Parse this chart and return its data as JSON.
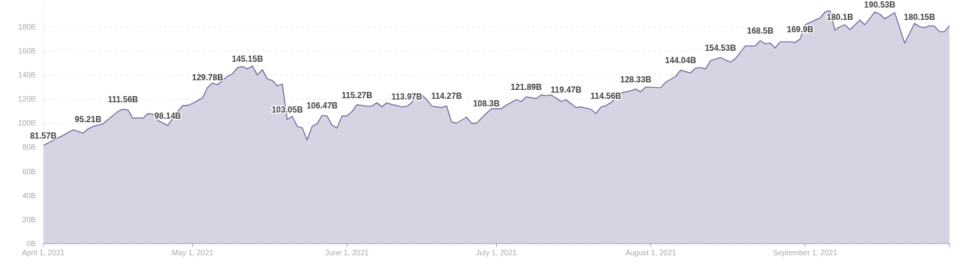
{
  "chart_data": {
    "type": "area",
    "x": [
      "2021-04-01",
      "2021-04-05",
      "2021-04-07",
      "2021-04-09",
      "2021-04-10",
      "2021-04-11",
      "2021-04-13",
      "2021-04-14",
      "2021-04-16",
      "2021-04-17",
      "2021-04-18",
      "2021-04-19",
      "2021-04-20",
      "2021-04-21",
      "2021-04-22",
      "2021-04-23",
      "2021-04-24",
      "2021-04-26",
      "2021-04-28",
      "2021-04-29",
      "2021-04-30",
      "2021-05-01",
      "2021-05-03",
      "2021-05-04",
      "2021-05-05",
      "2021-05-06",
      "2021-05-08",
      "2021-05-09",
      "2021-05-10",
      "2021-05-11",
      "2021-05-12",
      "2021-05-13",
      "2021-05-14",
      "2021-05-15",
      "2021-05-16",
      "2021-05-17",
      "2021-05-18",
      "2021-05-19",
      "2021-05-20",
      "2021-05-21",
      "2021-05-22",
      "2021-05-23",
      "2021-05-24",
      "2021-05-25",
      "2021-05-26",
      "2021-05-27",
      "2021-05-28",
      "2021-05-29",
      "2021-05-30",
      "2021-05-31",
      "2021-06-01",
      "2021-06-02",
      "2021-06-03",
      "2021-06-05",
      "2021-06-06",
      "2021-06-07",
      "2021-06-08",
      "2021-06-09",
      "2021-06-10",
      "2021-06-12",
      "2021-06-13",
      "2021-06-14",
      "2021-06-15",
      "2021-06-16",
      "2021-06-17",
      "2021-06-18",
      "2021-06-20",
      "2021-06-21",
      "2021-06-22",
      "2021-06-23",
      "2021-06-25",
      "2021-06-26",
      "2021-06-27",
      "2021-06-29",
      "2021-06-30",
      "2021-07-02",
      "2021-07-03",
      "2021-07-05",
      "2021-07-06",
      "2021-07-07",
      "2021-07-09",
      "2021-07-10",
      "2021-07-11",
      "2021-07-12",
      "2021-07-14",
      "2021-07-15",
      "2021-07-17",
      "2021-07-18",
      "2021-07-20",
      "2021-07-21",
      "2021-07-22",
      "2021-07-23",
      "2021-07-24",
      "2021-07-26",
      "2021-07-28",
      "2021-07-29",
      "2021-07-30",
      "2021-07-31",
      "2021-08-03",
      "2021-08-04",
      "2021-08-06",
      "2021-08-07",
      "2021-08-09",
      "2021-08-10",
      "2021-08-11",
      "2021-08-12",
      "2021-08-13",
      "2021-08-15",
      "2021-08-17",
      "2021-08-18",
      "2021-08-20",
      "2021-08-22",
      "2021-08-23",
      "2021-08-24",
      "2021-08-25",
      "2021-08-26",
      "2021-08-27",
      "2021-08-29",
      "2021-08-30",
      "2021-08-31",
      "2021-09-01",
      "2021-09-03",
      "2021-09-04",
      "2021-09-05",
      "2021-09-06",
      "2021-09-07",
      "2021-09-08",
      "2021-09-09",
      "2021-09-10",
      "2021-09-12",
      "2021-09-13",
      "2021-09-15",
      "2021-09-16",
      "2021-09-17",
      "2021-09-19",
      "2021-09-21",
      "2021-09-23",
      "2021-09-24",
      "2021-09-25",
      "2021-09-26",
      "2021-09-27",
      "2021-09-28",
      "2021-09-29",
      "2021-09-30"
    ],
    "series": [
      {
        "color": "#6b679c",
        "values": [
          81.57,
          90,
          94.5,
          91.7,
          95.21,
          97.3,
          99.5,
          103,
          109.7,
          111.56,
          111,
          104,
          104.5,
          104,
          108,
          107.5,
          102.4,
          98.14,
          109.7,
          114.7,
          114.7,
          116.4,
          121,
          129.78,
          133.3,
          132,
          138.9,
          141,
          146,
          147,
          145.15,
          147.5,
          140,
          144.5,
          136.7,
          135.5,
          131,
          132.5,
          103.05,
          105.7,
          97.4,
          96.2,
          86,
          97.4,
          99.5,
          106.47,
          106,
          98.4,
          96,
          106,
          106,
          109.7,
          115.27,
          114.2,
          114.2,
          117,
          113.6,
          117,
          115.5,
          113.6,
          113.97,
          117,
          125,
          123.5,
          119.6,
          114.2,
          113,
          114.27,
          101,
          100,
          105,
          100,
          100,
          108.3,
          112,
          112,
          115,
          119.4,
          118,
          121.89,
          120.4,
          123.5,
          122.7,
          123.5,
          118,
          119.47,
          113,
          113.5,
          111.5,
          108,
          113.5,
          114.56,
          117,
          124.9,
          127,
          128.33,
          126,
          130,
          129.4,
          134,
          138.9,
          144.04,
          141.7,
          145.7,
          146.2,
          145,
          151.9,
          154.53,
          150.7,
          153.5,
          164.2,
          164.2,
          168.5,
          165.9,
          166.5,
          162.5,
          167.6,
          167.6,
          167,
          169.9,
          181.7,
          185.6,
          187.3,
          192.3,
          193.5,
          177.2,
          180.1,
          181.7,
          177.7,
          185.6,
          181.7,
          192.3,
          190.53,
          186.7,
          191.8,
          166.5,
          182.8,
          180.15,
          179.4,
          181,
          180.5,
          176,
          176,
          181
        ],
        "value_labels": [
          "81.57B",
          null,
          null,
          null,
          "95.21B",
          null,
          null,
          null,
          null,
          "111.56B",
          null,
          null,
          null,
          null,
          null,
          null,
          null,
          "98.14B",
          null,
          null,
          null,
          null,
          null,
          "129.78B",
          null,
          null,
          null,
          null,
          null,
          null,
          "145.15B",
          null,
          null,
          null,
          null,
          null,
          null,
          null,
          "103.05B",
          null,
          null,
          null,
          null,
          null,
          null,
          "106.47B",
          null,
          null,
          null,
          null,
          null,
          null,
          "115.27B",
          null,
          null,
          null,
          null,
          null,
          null,
          null,
          "113.97B",
          null,
          null,
          null,
          null,
          null,
          null,
          "114.27B",
          null,
          null,
          null,
          null,
          null,
          "108.3B",
          null,
          null,
          null,
          null,
          null,
          "121.89B",
          null,
          null,
          null,
          null,
          null,
          "119.47B",
          null,
          null,
          null,
          null,
          null,
          "114.56B",
          null,
          null,
          null,
          "128.33B",
          null,
          null,
          null,
          null,
          null,
          "144.04B",
          null,
          null,
          null,
          null,
          null,
          "154.53B",
          null,
          null,
          null,
          null,
          "168.5B",
          null,
          null,
          null,
          null,
          null,
          null,
          "169.9B",
          null,
          null,
          null,
          null,
          null,
          null,
          "180.1B",
          null,
          null,
          null,
          null,
          null,
          "190.53B",
          null,
          null,
          null,
          null,
          "180.15B",
          null,
          null,
          null,
          null,
          null,
          null
        ]
      }
    ],
    "xlim": [
      "2021-04-01",
      "2021-09-30"
    ],
    "xticks": [
      {
        "value": "2021-04-01",
        "label": "April 1, 2021"
      },
      {
        "value": "2021-05-01",
        "label": "May 1, 2021"
      },
      {
        "value": "2021-06-01",
        "label": "June 1, 2021"
      },
      {
        "value": "2021-07-01",
        "label": "July 1, 2021"
      },
      {
        "value": "2021-08-01",
        "label": "August 1, 2021"
      },
      {
        "value": "2021-09-01",
        "label": "September 1, 2021"
      },
      {
        "value": "2021-09-30",
        "label": null
      }
    ],
    "ylim": [
      0,
      200
    ],
    "yticks": [
      {
        "value": 0,
        "label": "0B"
      },
      {
        "value": 20,
        "label": "20B"
      },
      {
        "value": 40,
        "label": "40B"
      },
      {
        "value": 60,
        "label": "60B"
      },
      {
        "value": 80,
        "label": "80B"
      },
      {
        "value": 100,
        "label": "100B"
      },
      {
        "value": 120,
        "label": "120B"
      },
      {
        "value": 140,
        "label": "140B"
      },
      {
        "value": 160,
        "label": "160B"
      },
      {
        "value": 180,
        "label": "180B"
      }
    ],
    "grid": "y",
    "marker": "none",
    "line_style": "solid"
  }
}
